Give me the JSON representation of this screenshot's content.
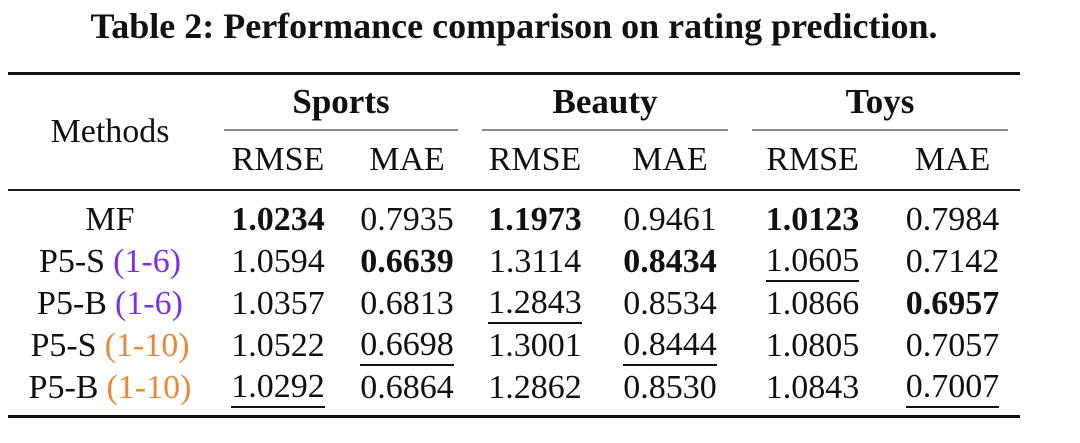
{
  "title": "Table 2: Performance comparison on rating prediction.",
  "colors": {
    "text": "#111111",
    "range_1_6": "#7E2FE8",
    "range_1_10": "#EE8638",
    "thick_rule": "#111111",
    "cmidrule": "#8b8b8b"
  },
  "table": {
    "methods_header": "Methods",
    "groups": [
      {
        "label": "Sports"
      },
      {
        "label": "Beauty"
      },
      {
        "label": "Toys"
      }
    ],
    "subheaders": [
      "RMSE",
      "MAE",
      "RMSE",
      "MAE",
      "RMSE",
      "MAE"
    ],
    "rows": [
      {
        "method": "MF",
        "range": "",
        "range_color": "",
        "cells": [
          {
            "v": "1.0234",
            "bold": true
          },
          {
            "v": "0.7935"
          },
          {
            "v": "1.1973",
            "bold": true
          },
          {
            "v": "0.9461"
          },
          {
            "v": "1.0123",
            "bold": true
          },
          {
            "v": "0.7984"
          }
        ]
      },
      {
        "method": "P5-S",
        "range": "(1-6)",
        "range_color": "range_1_6",
        "cells": [
          {
            "v": "1.0594"
          },
          {
            "v": "0.6639",
            "bold": true
          },
          {
            "v": "1.3114"
          },
          {
            "v": "0.8434",
            "bold": true
          },
          {
            "v": "1.0605",
            "underline": true
          },
          {
            "v": "0.7142"
          }
        ]
      },
      {
        "method": "P5-B",
        "range": "(1-6)",
        "range_color": "range_1_6",
        "cells": [
          {
            "v": "1.0357"
          },
          {
            "v": "0.6813"
          },
          {
            "v": "1.2843",
            "underline": true
          },
          {
            "v": "0.8534"
          },
          {
            "v": "1.0866"
          },
          {
            "v": "0.6957",
            "bold": true
          }
        ]
      },
      {
        "method": "P5-S",
        "range": "(1-10)",
        "range_color": "range_1_10",
        "cells": [
          {
            "v": "1.0522"
          },
          {
            "v": "0.6698",
            "underline": true
          },
          {
            "v": "1.3001"
          },
          {
            "v": "0.8444",
            "underline": true
          },
          {
            "v": "1.0805"
          },
          {
            "v": "0.7057"
          }
        ]
      },
      {
        "method": "P5-B",
        "range": "(1-10)",
        "range_color": "range_1_10",
        "cells": [
          {
            "v": "1.0292",
            "underline": true
          },
          {
            "v": "0.6864"
          },
          {
            "v": "1.2862"
          },
          {
            "v": "0.8530"
          },
          {
            "v": "1.0843"
          },
          {
            "v": "0.7007",
            "underline": true
          }
        ]
      }
    ]
  }
}
